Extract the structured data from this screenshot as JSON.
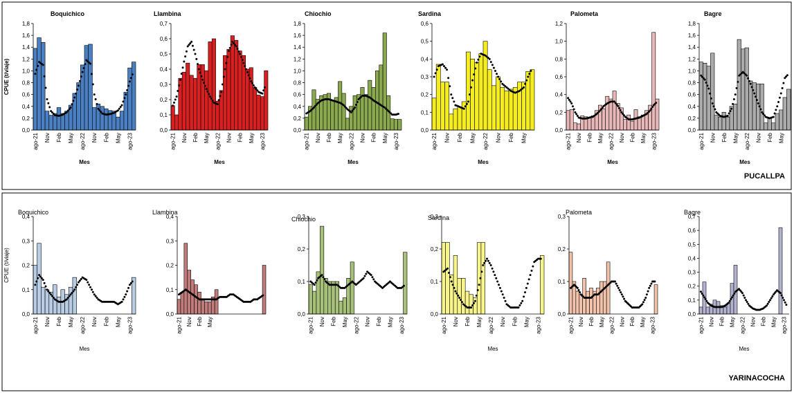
{
  "panels": [
    {
      "label": "PUCALLPA"
    },
    {
      "label": "YARINACOCHA"
    }
  ],
  "chart_data": [
    {
      "type": "bar",
      "panel": 0,
      "title": "Boquichico",
      "xlabel": "Mes",
      "ylabel": "CPUE (t/viaje)",
      "ylim": [
        0,
        1.8
      ],
      "yticks": [
        "0,0",
        "0,2",
        "0,4",
        "0,6",
        "0,8",
        "1,0",
        "1,2",
        "1,4",
        "1,6",
        "1,8"
      ],
      "xticks": [
        "ago-21",
        "Nov",
        "Feb",
        "May",
        "ago-22",
        "Nov",
        "Feb",
        "May",
        "ago-23"
      ],
      "bar_color": "#4a7fc1",
      "values": [
        1.38,
        1.56,
        1.48,
        0.32,
        0.25,
        0.28,
        0.38,
        0.28,
        0.32,
        0.42,
        0.62,
        0.8,
        1.1,
        1.43,
        1.45,
        0.38,
        0.44,
        0.4,
        0.36,
        0.33,
        0.32,
        0.22,
        0.32,
        0.64,
        1.05,
        1.15
      ],
      "trend": [
        0.95,
        1.15,
        1.1,
        0.52,
        0.32,
        0.25,
        0.24,
        0.26,
        0.3,
        0.38,
        0.55,
        0.75,
        0.98,
        1.18,
        1.12,
        0.6,
        0.36,
        0.28,
        0.26,
        0.27,
        0.29,
        0.33,
        0.42,
        0.6,
        0.82,
        1.0
      ]
    },
    {
      "type": "bar",
      "panel": 0,
      "title": "Llambina",
      "xlabel": "Mes",
      "ylabel": "",
      "ylim": [
        0,
        0.7
      ],
      "yticks": [
        "0,0",
        "0,1",
        "0,2",
        "0,3",
        "0,4",
        "0,5",
        "0,6",
        "0,7"
      ],
      "xticks": [
        "ago-21",
        "Nov",
        "Feb",
        "May",
        "ago-22",
        "Nov",
        "Feb",
        "May",
        "ago-23"
      ],
      "bar_color": "#d92020",
      "values": [
        0.16,
        0.1,
        0.34,
        0.38,
        0.44,
        0.36,
        0.34,
        0.43,
        0.43,
        0.39,
        0.58,
        0.6,
        0.19,
        0.26,
        0.49,
        0.53,
        0.62,
        0.59,
        0.52,
        0.49,
        0.4,
        0.41,
        0.28,
        0.23,
        0.22,
        0.39
      ],
      "trend": [
        0.16,
        0.22,
        0.33,
        0.45,
        0.55,
        0.58,
        0.5,
        0.4,
        0.33,
        0.27,
        0.22,
        0.18,
        0.17,
        0.25,
        0.4,
        0.52,
        0.58,
        0.55,
        0.5,
        0.44,
        0.38,
        0.32,
        0.28,
        0.25,
        0.24,
        0.3
      ]
    },
    {
      "type": "bar",
      "panel": 0,
      "title": "Chiochio",
      "xlabel": "Mes",
      "ylabel": "",
      "ylim": [
        0,
        1.8
      ],
      "yticks": [
        "0,0",
        "0,2",
        "0,4",
        "0,6",
        "0,8",
        "1,0",
        "1,2",
        "1,4",
        "1,6",
        "1,8"
      ],
      "xticks": [
        "ago-21",
        "Nov",
        "Feb",
        "May",
        "ago-22",
        "Nov",
        "Feb",
        "May",
        "ago-23"
      ],
      "bar_color": "#8aa84e",
      "values": [
        0.22,
        0.4,
        0.68,
        0.52,
        0.58,
        0.6,
        0.62,
        0.5,
        0.55,
        0.82,
        0.62,
        0.2,
        0.4,
        0.58,
        0.6,
        0.72,
        0.6,
        0.84,
        0.72,
        1.0,
        1.1,
        1.64,
        0.58,
        0.19,
        0.18,
        0.18
      ],
      "trend": [
        0.28,
        0.32,
        0.38,
        0.45,
        0.5,
        0.52,
        0.52,
        0.5,
        0.48,
        0.46,
        0.42,
        0.35,
        0.3,
        0.38,
        0.52,
        0.58,
        0.58,
        0.55,
        0.5,
        0.46,
        0.42,
        0.38,
        0.32,
        0.26,
        0.26,
        0.28
      ]
    },
    {
      "type": "bar",
      "panel": 0,
      "title": "Sardina",
      "xlabel": "Mes",
      "ylabel": "",
      "ylim": [
        0,
        0.6
      ],
      "yticks": [
        "0,0",
        "0,1",
        "0,2",
        "0,3",
        "0,4",
        "0,5",
        "0,6"
      ],
      "xticks": [
        "ago-21",
        "Nov",
        "Feb",
        "May",
        "ago-22",
        "Nov",
        "Feb",
        "May",
        "ago-23"
      ],
      "bar_color": "#f5ed1f",
      "values": [
        0.18,
        0.37,
        0.27,
        0.27,
        0.09,
        0.12,
        0.13,
        0.16,
        0.44,
        0.4,
        0.38,
        0.43,
        0.5,
        0.34,
        0.25,
        0.3,
        0.24,
        0.22,
        0.23,
        0.24,
        0.27,
        0.27,
        0.33,
        0.34
      ],
      "trend": [
        0.3,
        0.36,
        0.37,
        0.34,
        0.2,
        0.14,
        0.13,
        0.12,
        0.16,
        0.28,
        0.38,
        0.43,
        0.42,
        0.4,
        0.35,
        0.3,
        0.26,
        0.24,
        0.22,
        0.21,
        0.22,
        0.24,
        0.3,
        0.35
      ]
    },
    {
      "type": "bar",
      "panel": 0,
      "title": "Palometa",
      "xlabel": "Mes",
      "ylabel": "",
      "ylim": [
        0,
        1.2
      ],
      "yticks": [
        "0,0",
        "0,2",
        "0,4",
        "0,6",
        "0,8",
        "1,0",
        "1,2"
      ],
      "xticks": [
        "ago-21",
        "Nov",
        "Feb",
        "May",
        "ago-22",
        "Nov",
        "Feb",
        "May",
        "ago-23"
      ],
      "bar_color": "#e8b8b8",
      "values": [
        0.22,
        0.23,
        0.08,
        0.07,
        0.16,
        0.15,
        0.14,
        0.16,
        0.22,
        0.28,
        0.24,
        0.38,
        0.35,
        0.44,
        0.3,
        0.25,
        0.12,
        0.17,
        0.1,
        0.23,
        0.15,
        0.17,
        0.22,
        0.28,
        1.1,
        0.35
      ],
      "trend": [
        0.36,
        0.3,
        0.2,
        0.14,
        0.13,
        0.13,
        0.14,
        0.15,
        0.18,
        0.22,
        0.27,
        0.3,
        0.32,
        0.32,
        0.27,
        0.2,
        0.15,
        0.12,
        0.12,
        0.13,
        0.14,
        0.16,
        0.18,
        0.22,
        0.28,
        0.32
      ]
    },
    {
      "type": "bar",
      "panel": 0,
      "title": "Bagre",
      "xlabel": "Mes",
      "ylabel": "",
      "ylim": [
        0,
        1.8
      ],
      "yticks": [
        "0,0",
        "0,2",
        "0,4",
        "0,6",
        "0,8",
        "1,0",
        "1,2",
        "1,4",
        "1,6",
        "1,8"
      ],
      "xticks": [
        "ago-21",
        "Nov",
        "Feb",
        "May",
        "ago-22",
        "Nov",
        "Feb",
        "May",
        "ago-23"
      ],
      "bar_color": "#ababab",
      "values": [
        1.15,
        1.13,
        1.08,
        1.3,
        0.25,
        0.22,
        0.3,
        0.22,
        0.4,
        0.44,
        1.53,
        1.37,
        1.39,
        0.83,
        0.8,
        0.78,
        0.78,
        0.12,
        0.2,
        0.12,
        0.28,
        0.34,
        0.55,
        0.69
      ],
      "trend": [
        0.92,
        0.85,
        0.7,
        0.45,
        0.3,
        0.24,
        0.22,
        0.24,
        0.36,
        0.6,
        0.92,
        0.98,
        0.92,
        0.78,
        0.62,
        0.45,
        0.3,
        0.22,
        0.2,
        0.22,
        0.4,
        0.62,
        0.88,
        0.95
      ]
    },
    {
      "type": "bar",
      "panel": 1,
      "title": "Boquichico",
      "xlabel": "Mes",
      "ylabel": "CPUE (t/viaje)",
      "ylim": [
        0,
        0.4
      ],
      "yticks": [
        "0,0",
        "0,1",
        "0,2",
        "0,3",
        "0,4"
      ],
      "xticks": [
        "ago-21",
        "Nov",
        "Feb",
        "May",
        "ago-22",
        "Nov",
        "Feb",
        "May",
        "ago-23"
      ],
      "bar_color": "#b8cce4",
      "values": [
        0.2,
        0.29,
        0.11,
        0.1,
        0.09,
        0.12,
        0.07,
        0.1,
        0.08,
        0.11,
        0.15,
        null,
        null,
        null,
        null,
        null,
        null,
        null,
        null,
        null,
        null,
        null,
        null,
        null,
        null,
        0.15
      ],
      "trend": [
        0.12,
        0.16,
        0.14,
        0.1,
        0.08,
        0.06,
        0.05,
        0.05,
        0.06,
        0.08,
        0.1,
        0.13,
        0.15,
        0.14,
        0.11,
        0.08,
        0.06,
        0.05,
        0.05,
        0.05,
        0.05,
        0.04,
        0.05,
        0.08,
        0.12,
        0.14
      ]
    },
    {
      "type": "bar",
      "panel": 1,
      "title": "Llambina",
      "xlabel": "",
      "ylabel": "",
      "ylim": [
        0,
        0.4
      ],
      "yticks": [
        "0,0",
        "0,1",
        "0,2",
        "0,3",
        "0,4"
      ],
      "xticks": [
        "ago-21",
        "Nov",
        "Feb",
        "May"
      ],
      "bar_color": "#c07b7b",
      "values": [
        0.06,
        0.09,
        0.29,
        0.18,
        0.14,
        0.12,
        0.09,
        0.06,
        0.05,
        0.05,
        0.07,
        0.1,
        null,
        null,
        null,
        null,
        null,
        null,
        null,
        null,
        null,
        null,
        null,
        null,
        null,
        0.2
      ],
      "trend": [
        0.08,
        0.09,
        0.1,
        0.09,
        0.08,
        0.07,
        0.06,
        0.06,
        0.06,
        0.06,
        0.06,
        0.06,
        0.07,
        0.07,
        0.07,
        0.08,
        0.08,
        0.07,
        0.06,
        0.05,
        0.05,
        0.05,
        0.06,
        0.06,
        0.07,
        0.08
      ]
    },
    {
      "type": "bar",
      "panel": 1,
      "title": "Chiochio",
      "xlabel": "",
      "ylabel": "",
      "ylim": [
        0,
        0.3
      ],
      "yticks": [
        "0,0",
        "0,1",
        "0,2",
        "0,3"
      ],
      "xticks": [
        "ago-21",
        "Nov",
        "Feb",
        "May",
        "ago-22",
        "Nov",
        "Feb",
        "May",
        "ago-23"
      ],
      "bar_color": "#a7c17a",
      "values": [
        0.09,
        0.07,
        0.13,
        0.27,
        0.11,
        0.1,
        0.1,
        0.1,
        0.04,
        0.05,
        0.11,
        0.16,
        null,
        null,
        null,
        null,
        null,
        null,
        null,
        null,
        null,
        null,
        null,
        null,
        null,
        0.19
      ],
      "trend": [
        0.1,
        0.09,
        0.11,
        0.12,
        0.1,
        0.09,
        0.09,
        0.09,
        0.08,
        0.08,
        0.09,
        0.1,
        0.09,
        0.1,
        0.11,
        0.13,
        0.12,
        0.1,
        0.09,
        0.08,
        0.09,
        0.1,
        0.09,
        0.08,
        0.08,
        0.09
      ]
    },
    {
      "type": "bar",
      "panel": 1,
      "title": "Sardina",
      "xlabel": "Mes",
      "ylabel": "",
      "ylim": [
        0,
        0.3
      ],
      "yticks": [
        "0,0",
        "0,1",
        "0,2",
        "0,3"
      ],
      "xticks": [
        "ago-21",
        "Nov",
        "Feb",
        "May",
        "ago-22",
        "Nov",
        "Feb",
        "May",
        "ago-23"
      ],
      "bar_color": "#f8f48c",
      "values": [
        0.22,
        0.22,
        0.12,
        0.18,
        0.11,
        0.11,
        0.07,
        0.06,
        0.05,
        0.22,
        0.22,
        null,
        null,
        null,
        null,
        null,
        null,
        null,
        null,
        null,
        null,
        null,
        null,
        null,
        null,
        0.18
      ],
      "trend": [
        0.13,
        0.14,
        0.1,
        0.07,
        0.05,
        0.03,
        0.02,
        0.02,
        0.04,
        0.09,
        0.15,
        0.17,
        0.15,
        0.12,
        0.09,
        0.06,
        0.03,
        0.02,
        0.02,
        0.02,
        0.04,
        0.08,
        0.12,
        0.16,
        0.17,
        0.17
      ]
    },
    {
      "type": "bar",
      "panel": 1,
      "title": "Palometa",
      "xlabel": "",
      "ylabel": "",
      "ylim": [
        0,
        0.3
      ],
      "yticks": [
        "0,0",
        "0,1",
        "0,2",
        "0,3"
      ],
      "xticks": [
        "ago-21",
        "Nov",
        "Feb",
        "May",
        "ago-22",
        "Nov",
        "Feb",
        "May",
        "ago-23"
      ],
      "bar_color": "#f2c3aa",
      "values": [
        0.19,
        0.1,
        0.07,
        0.06,
        0.11,
        0.07,
        0.08,
        0.07,
        0.08,
        0.1,
        0.1,
        0.16,
        null,
        null,
        null,
        null,
        null,
        null,
        null,
        null,
        null,
        null,
        null,
        null,
        null,
        0.09
      ],
      "trend": [
        0.08,
        0.09,
        0.08,
        0.06,
        0.05,
        0.05,
        0.05,
        0.06,
        0.06,
        0.07,
        0.08,
        0.09,
        0.1,
        0.1,
        0.08,
        0.06,
        0.04,
        0.03,
        0.02,
        0.02,
        0.02,
        0.03,
        0.05,
        0.08,
        0.1,
        0.1
      ]
    },
    {
      "type": "bar",
      "panel": 1,
      "title": "Bagre",
      "xlabel": "Mes",
      "ylabel": "",
      "ylim": [
        0,
        0.7
      ],
      "yticks": [
        "0,0",
        "0,1",
        "0,2",
        "0,3",
        "0,4",
        "0,5",
        "0,6",
        "0,7"
      ],
      "xticks": [
        "ago-21",
        "Nov",
        "Feb",
        "May",
        "ago-22",
        "Nov",
        "Feb",
        "May",
        "ago-23"
      ],
      "bar_color": "#b3b3d1",
      "values": [
        0.05,
        0.23,
        0.05,
        0.07,
        0.1,
        0.09,
        0.06,
        0.05,
        0.08,
        0.22,
        0.35,
        null,
        null,
        null,
        null,
        null,
        null,
        null,
        null,
        null,
        null,
        null,
        null,
        0.62,
        null,
        null
      ],
      "trend": [
        0.16,
        0.12,
        0.08,
        0.06,
        0.05,
        0.05,
        0.05,
        0.06,
        0.08,
        0.12,
        0.16,
        0.18,
        0.15,
        0.1,
        0.06,
        0.04,
        0.03,
        0.03,
        0.04,
        0.06,
        0.1,
        0.14,
        0.17,
        0.15,
        0.1,
        0.05
      ]
    }
  ]
}
